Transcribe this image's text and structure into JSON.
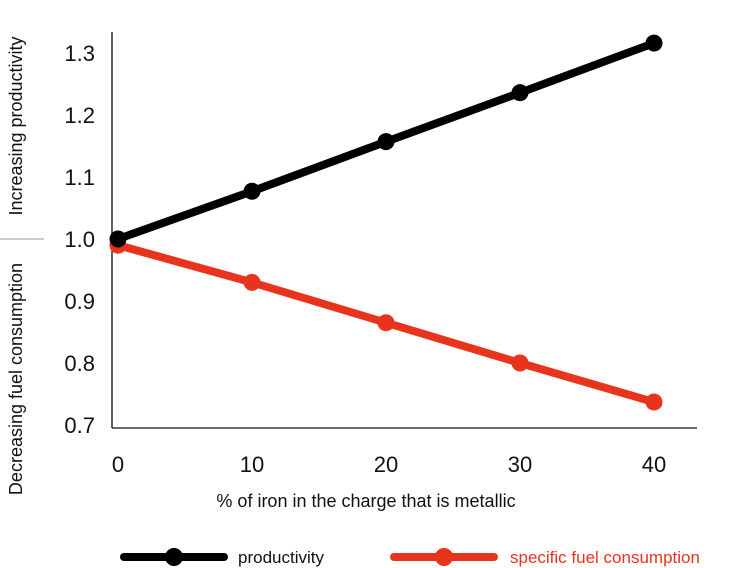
{
  "chart_data": {
    "type": "line",
    "title": "",
    "xlabel": "% of iron in the charge that is metallic",
    "ylabel_upper": "Increasing productivity",
    "ylabel_lower": "Decreasing fuel consumption",
    "x": [
      0,
      10,
      20,
      30,
      40
    ],
    "xlim": [
      0,
      40
    ],
    "ylim": [
      0.7,
      1.3
    ],
    "x_ticks": [
      "0",
      "10",
      "20",
      "30",
      "40"
    ],
    "y_ticks": [
      "0.7",
      "0.8",
      "0.9",
      "1.0",
      "1.1",
      "1.2",
      "1.3"
    ],
    "y_tick_values": [
      0.7,
      0.8,
      0.9,
      1.0,
      1.1,
      1.2,
      1.3
    ],
    "grid": false,
    "legend_position": "bottom",
    "series": [
      {
        "name": "productivity",
        "color": "#000000",
        "values": [
          1.0,
          1.077,
          1.157,
          1.236,
          1.316
        ]
      },
      {
        "name": "specific fuel consumption",
        "color": "#e8341c",
        "values": [
          0.99,
          0.93,
          0.865,
          0.8,
          0.737
        ]
      }
    ]
  }
}
